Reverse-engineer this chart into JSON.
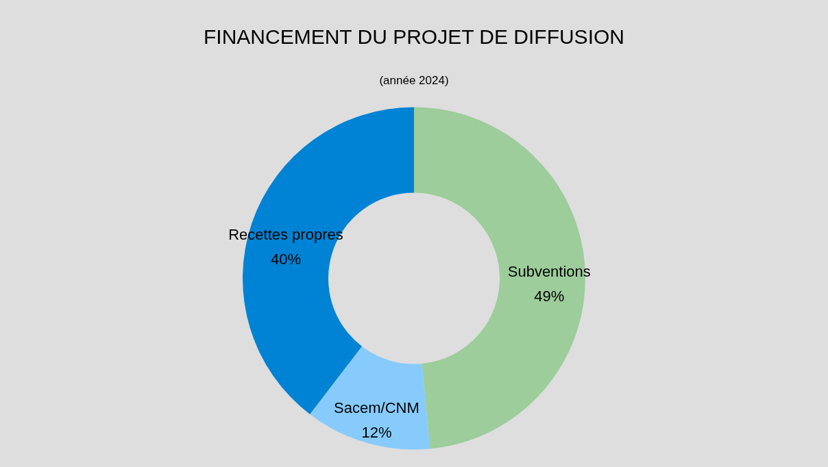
{
  "chart_data": {
    "type": "donut",
    "title": "FINANCEMENT DU PROJET DE DIFFUSION",
    "subtitle": "(année 2024)",
    "categories": [
      "Subventions",
      "Sacem/CNM",
      "Recettes propres"
    ],
    "values": [
      49,
      12,
      40
    ],
    "value_labels": [
      "49%",
      "12%",
      "40%"
    ],
    "colors": [
      "#9dcd9a",
      "#87cbfc",
      "#0083d4"
    ],
    "legend": false
  }
}
